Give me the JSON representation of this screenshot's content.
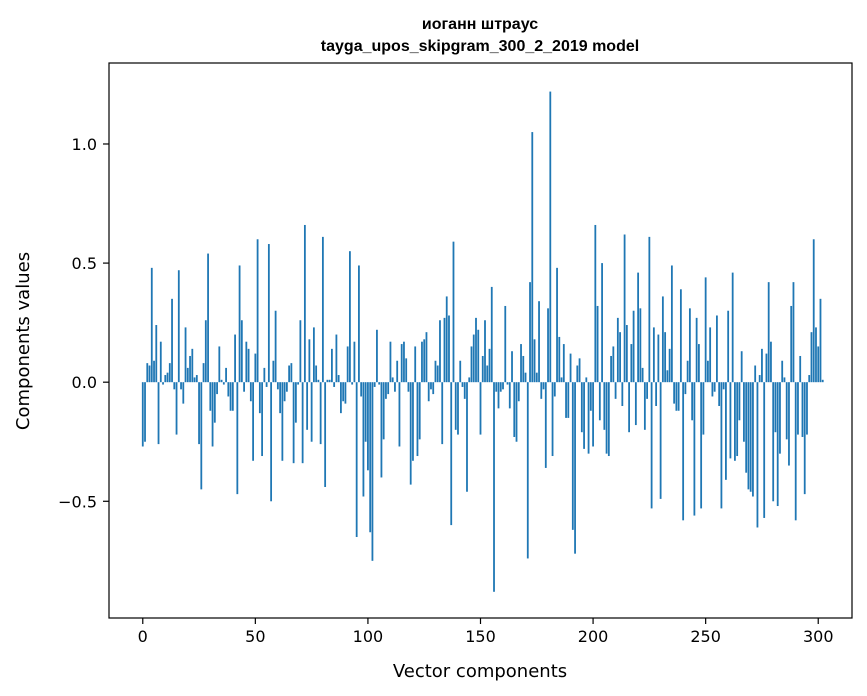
{
  "chart_data": {
    "type": "bar",
    "title": "иоганн штраус",
    "subtitle": "tayga_upos_skipgram_300_2_2019 model",
    "xlabel": "Vector components",
    "ylabel": "Components values",
    "xlim": [
      -15,
      315
    ],
    "ylim": [
      -0.99,
      1.34
    ],
    "xticks": [
      0,
      50,
      100,
      150,
      200,
      250,
      300
    ],
    "xtick_labels": [
      "0",
      "50",
      "100",
      "150",
      "200",
      "250",
      "300"
    ],
    "yticks": [
      -0.5,
      0.0,
      0.5,
      1.0
    ],
    "ytick_labels": [
      "−0.5",
      "0.0",
      "0.5",
      "1.0"
    ],
    "grid": false,
    "bar_color": "#1f77b4",
    "values": [
      -0.27,
      -0.25,
      0.08,
      0.07,
      0.48,
      0.09,
      0.24,
      -0.26,
      0.17,
      -0.01,
      0.03,
      0.04,
      0.08,
      0.35,
      -0.03,
      -0.22,
      0.47,
      -0.03,
      -0.09,
      0.23,
      0.06,
      0.11,
      0.14,
      0.02,
      0.03,
      -0.26,
      -0.45,
      0.08,
      0.26,
      0.54,
      -0.12,
      -0.27,
      -0.17,
      -0.05,
      0.15,
      0.01,
      -0.01,
      0.06,
      -0.06,
      -0.12,
      -0.12,
      0.2,
      -0.47,
      0.49,
      0.26,
      -0.04,
      0.17,
      0.14,
      -0.08,
      -0.33,
      0.12,
      0.6,
      -0.13,
      -0.31,
      0.06,
      -0.02,
      0.58,
      -0.5,
      0.09,
      0.3,
      -0.03,
      -0.13,
      -0.33,
      -0.08,
      -0.04,
      0.07,
      0.08,
      -0.34,
      -0.17,
      -0.01,
      0.26,
      -0.34,
      0.66,
      -0.2,
      0.18,
      -0.25,
      0.23,
      0.07,
      0.01,
      -0.26,
      0.61,
      -0.44,
      0.01,
      0.01,
      0.14,
      -0.02,
      0.2,
      0.03,
      -0.13,
      -0.08,
      -0.09,
      0.15,
      0.55,
      -0.01,
      0.17,
      -0.65,
      0.49,
      -0.06,
      -0.48,
      -0.25,
      -0.37,
      -0.63,
      -0.75,
      -0.02,
      0.22,
      -0.01,
      -0.4,
      -0.24,
      -0.07,
      -0.05,
      0.17,
      0.02,
      -0.04,
      0.09,
      -0.27,
      0.16,
      0.17,
      0.1,
      -0.04,
      -0.43,
      -0.33,
      0.15,
      -0.31,
      -0.24,
      0.17,
      0.18,
      0.21,
      -0.08,
      -0.03,
      -0.05,
      0.09,
      0.07,
      0.26,
      -0.26,
      0.27,
      0.36,
      0.28,
      -0.6,
      0.59,
      -0.2,
      -0.22,
      0.09,
      -0.02,
      -0.07,
      -0.46,
      0.02,
      0.15,
      0.2,
      0.27,
      0.22,
      -0.22,
      0.11,
      0.26,
      0.07,
      0.14,
      0.4,
      -0.88,
      -0.04,
      -0.11,
      -0.04,
      -0.03,
      0.32,
      -0.01,
      -0.11,
      0.13,
      -0.23,
      -0.25,
      -0.08,
      0.16,
      0.11,
      0.04,
      -0.74,
      0.42,
      1.05,
      0.18,
      0.04,
      0.34,
      -0.07,
      -0.03,
      -0.36,
      0.31,
      1.22,
      -0.31,
      -0.06,
      0.48,
      0.19,
      0.02,
      0.16,
      -0.15,
      -0.15,
      0.12,
      -0.62,
      -0.72,
      0.07,
      0.1,
      -0.21,
      -0.28,
      0.02,
      -0.3,
      -0.12,
      -0.27,
      0.66,
      0.32,
      -0.16,
      0.5,
      -0.2,
      -0.3,
      -0.31,
      0.11,
      0.15,
      -0.07,
      0.27,
      0.21,
      -0.1,
      0.62,
      0.24,
      -0.21,
      0.16,
      0.3,
      -0.18,
      0.46,
      0.31,
      0.06,
      -0.2,
      -0.07,
      0.61,
      -0.53,
      0.23,
      -0.1,
      0.2,
      -0.49,
      0.36,
      0.21,
      0.05,
      0.14,
      0.49,
      -0.09,
      -0.12,
      -0.12,
      0.39,
      -0.58,
      -0.05,
      0.09,
      0.31,
      -0.16,
      -0.56,
      0.27,
      0.16,
      -0.53,
      -0.22,
      0.44,
      0.09,
      0.23,
      -0.06,
      -0.04,
      0.28,
      -0.1,
      -0.53,
      -0.03,
      -0.41,
      0.3,
      -0.32,
      0.46,
      -0.33,
      -0.31,
      -0.16,
      0.13,
      -0.25,
      -0.38,
      -0.45,
      -0.46,
      -0.48,
      0.07,
      -0.61,
      0.03,
      0.14,
      -0.57,
      0.12,
      0.42,
      0.17,
      -0.5,
      -0.21,
      -0.52,
      -0.3,
      0.09,
      0.02,
      -0.24,
      -0.35,
      0.32,
      0.42,
      -0.58,
      -0.22,
      0.11,
      -0.23,
      -0.47,
      -0.22,
      0.03,
      0.21,
      0.6,
      0.23,
      0.15,
      0.35,
      0.01
    ]
  }
}
